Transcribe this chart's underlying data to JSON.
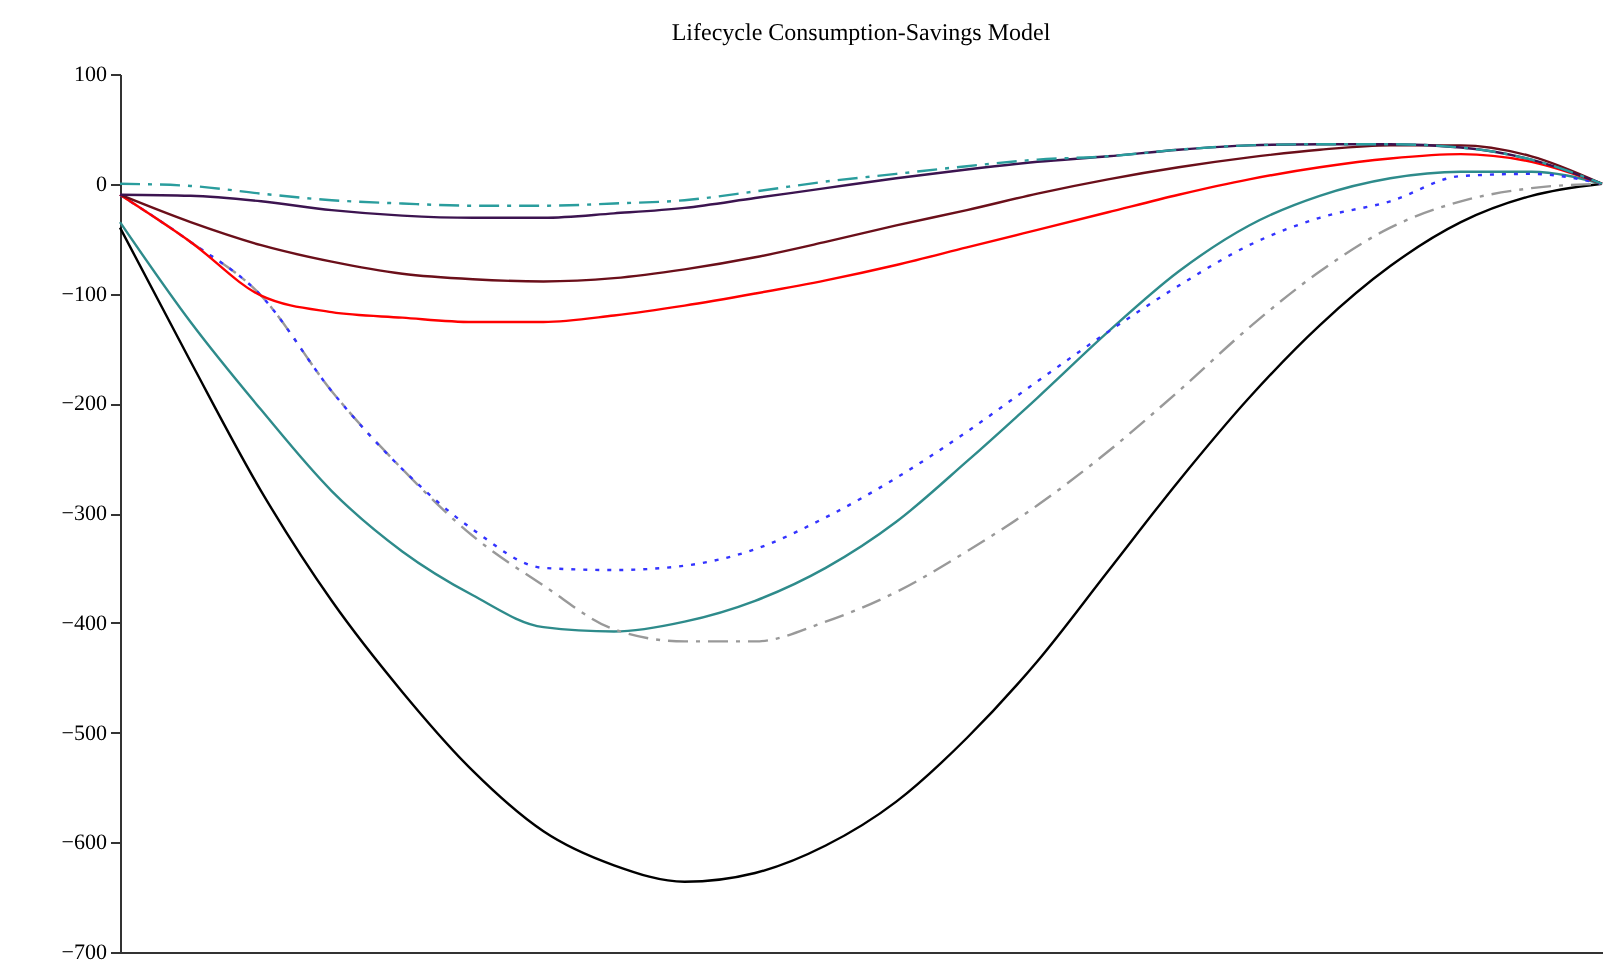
{
  "chart_data": {
    "type": "line",
    "title": "Lifecycle Consumption-Savings Model",
    "categories": [
      null,
      null,
      null,
      null,
      null,
      null,
      null,
      null,
      null,
      null,
      null,
      null,
      null,
      null,
      null,
      null,
      null,
      null,
      null,
      null,
      null,
      null
    ],
    "ylim": [
      -700,
      100
    ],
    "yticks": [
      -700,
      -600,
      -500,
      -400,
      -300,
      -200,
      -100,
      0,
      100
    ],
    "series": [
      {
        "color": "#000000",
        "line_style": "solid",
        "values": [
          -40,
          -162,
          -280,
          -380,
          -463,
          -535,
          -590,
          -621,
          -636,
          -628,
          -603,
          -563,
          -505,
          -435,
          -353,
          -271,
          -195,
          -129,
          -75,
          -35,
          -11,
          0
        ]
      },
      {
        "color": "#2e8b8b",
        "line_style": "solid",
        "values": [
          -35,
          -126,
          -206,
          -280,
          -335,
          -375,
          -404,
          -408,
          -399,
          -380,
          -350,
          -308,
          -253,
          -195,
          -135,
          -80,
          -38,
          -11,
          5,
          11,
          11,
          0
        ]
      },
      {
        "color": "#999999",
        "line_style": "dashed",
        "values": [
          -10,
          -53,
          -102,
          -189,
          -260,
          -321,
          -366,
          -406,
          -417,
          -417,
          -399,
          -372,
          -335,
          -293,
          -244,
          -189,
          -131,
          -80,
          -40,
          -16,
          -4,
          0
        ]
      },
      {
        "color": "#3333ff",
        "line_style": "dotted",
        "values": [
          -10,
          -53,
          -102,
          -189,
          -260,
          -315,
          -350,
          -352,
          -348,
          -333,
          -304,
          -268,
          -226,
          -180,
          -135,
          -93,
          -56,
          -31,
          -16,
          7,
          9,
          0
        ]
      },
      {
        "color": "#ff0000",
        "line_style": "solid",
        "values": [
          -10,
          -53,
          -102,
          -117,
          -122,
          -126,
          -126,
          -120,
          -111,
          -100,
          -88,
          -74,
          -58,
          -42,
          -26,
          -10,
          4,
          15,
          23,
          27,
          20,
          0
        ]
      },
      {
        "color": "#6b0f1a",
        "line_style": "solid",
        "values": [
          -10,
          -35,
          -56,
          -71,
          -82,
          -87,
          -89,
          -86,
          -78,
          -67,
          -53,
          -38,
          -24,
          -9,
          4,
          15,
          24,
          31,
          35,
          35,
          25,
          0
        ]
      },
      {
        "color": "#3c1450",
        "line_style": "solid",
        "values": [
          -10,
          -11,
          -16,
          -24,
          -29,
          -31,
          -31,
          -27,
          -22,
          -13,
          -4,
          5,
          13,
          20,
          25,
          31,
          35,
          36,
          36,
          33,
          22,
          0
        ]
      },
      {
        "color": "#2a9d9d",
        "line_style": "dashed",
        "values": [
          0,
          -2,
          -9,
          -15,
          -18,
          -20,
          -20,
          -18,
          -15,
          -7,
          2,
          9,
          16,
          22,
          25,
          31,
          35,
          36,
          36,
          33,
          22,
          0
        ]
      }
    ]
  }
}
